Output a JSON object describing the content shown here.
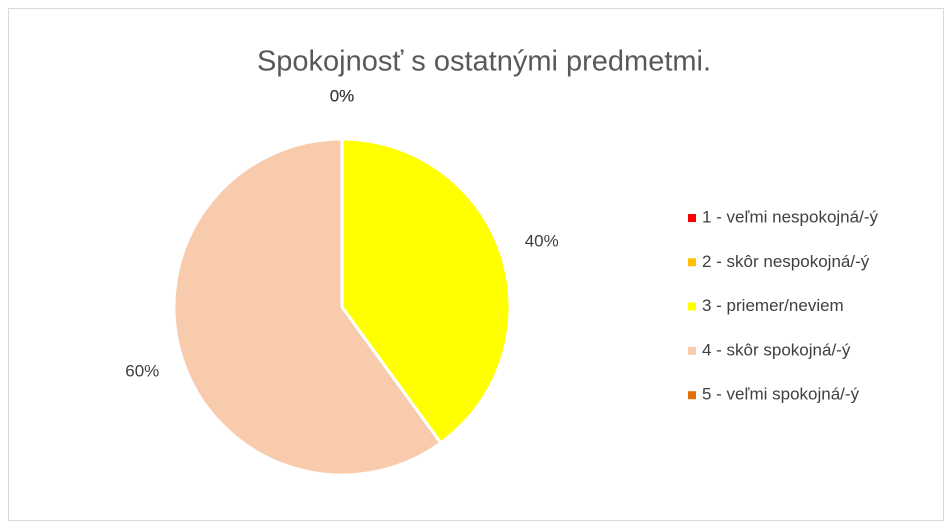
{
  "chart_data": {
    "type": "pie",
    "title": "Spokojnosť s ostatnými predmetmi.",
    "categories": [
      "1 - veľmi nespokojná/-ý",
      "2 - skôr nespokojná/-ý",
      "3 - priemer/neviem",
      "4 - skôr spokojná/-ý",
      "5 - veľmi spokojná/-ý"
    ],
    "values": [
      0,
      0,
      40,
      60,
      0
    ],
    "value_labels": [
      "0%",
      "0%",
      "40%",
      "60%",
      "0%"
    ],
    "colors": [
      "#ff0000",
      "#ffc000",
      "#ffff00",
      "#f8cbad",
      "#e46c0a"
    ],
    "legend": "right"
  }
}
